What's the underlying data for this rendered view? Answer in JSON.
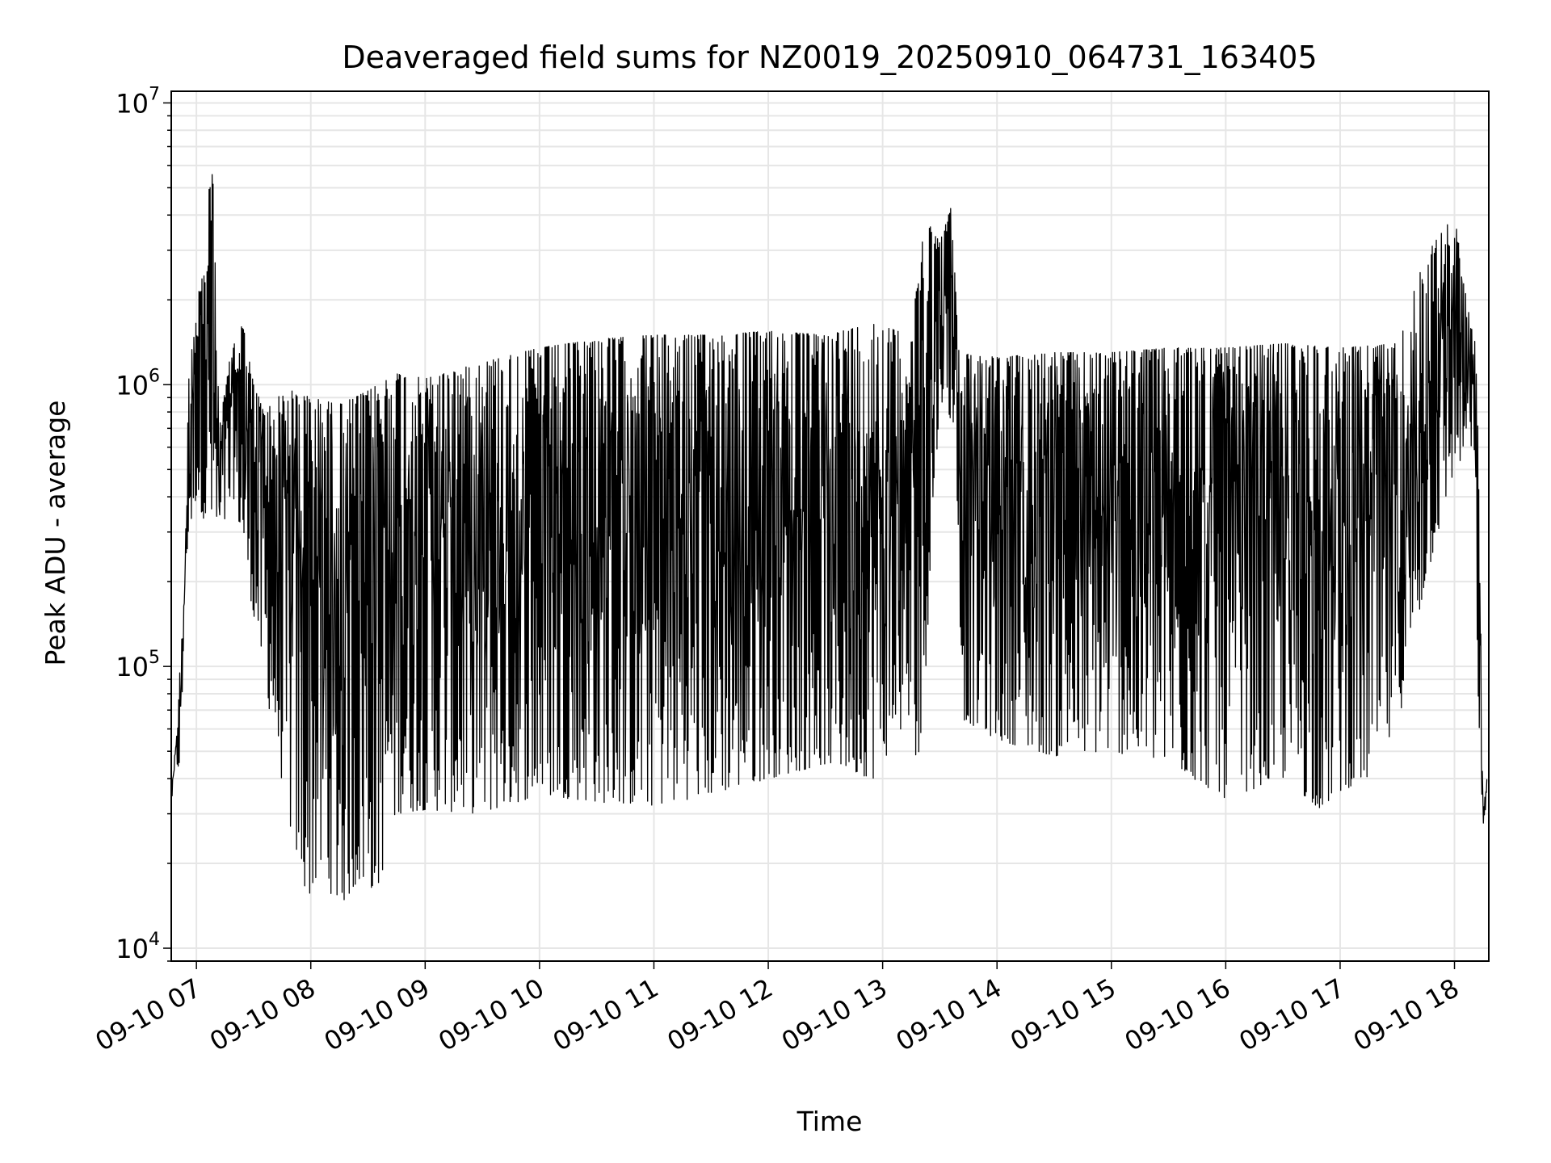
{
  "chart_data": {
    "type": "line",
    "title": "Deaveraged field sums for NZ0019_20250910_064731_163405",
    "xlabel": "Time",
    "ylabel": "Peak ADU - average",
    "yscale": "log",
    "ylim": [
      9000,
      11000000
    ],
    "xlim_hours": [
      6.78,
      18.3
    ],
    "grid": true,
    "legend": "none",
    "line_color": "#000000",
    "x_ticks": [
      {
        "label": "09-10 07",
        "hour": 7
      },
      {
        "label": "09-10 08",
        "hour": 8
      },
      {
        "label": "09-10 09",
        "hour": 9
      },
      {
        "label": "09-10 10",
        "hour": 10
      },
      {
        "label": "09-10 11",
        "hour": 11
      },
      {
        "label": "09-10 12",
        "hour": 12
      },
      {
        "label": "09-10 13",
        "hour": 13
      },
      {
        "label": "09-10 14",
        "hour": 14
      },
      {
        "label": "09-10 15",
        "hour": 15
      },
      {
        "label": "09-10 16",
        "hour": 16
      },
      {
        "label": "09-10 17",
        "hour": 17
      },
      {
        "label": "09-10 18",
        "hour": 18
      }
    ],
    "y_ticks": [
      {
        "base": "10",
        "exp": "4",
        "value": 10000
      },
      {
        "base": "10",
        "exp": "5",
        "value": 100000
      },
      {
        "base": "10",
        "exp": "6",
        "value": 1000000
      },
      {
        "base": "10",
        "exp": "7",
        "value": 10000000
      }
    ],
    "series": [
      {
        "upper_envelope": [
          [
            "09-10 06:47",
            40000
          ],
          [
            "09-10 06:52",
            45000
          ],
          [
            "09-10 06:56",
            1100000
          ],
          [
            "09-10 07:00",
            2200000
          ],
          [
            "09-10 07:05",
            2600000
          ],
          [
            "09-10 07:08",
            8400000
          ],
          [
            "09-10 07:12",
            700000
          ],
          [
            "09-10 07:18",
            1300000
          ],
          [
            "09-10 07:24",
            1700000
          ],
          [
            "09-10 07:30",
            1000000
          ],
          [
            "09-10 07:36",
            800000
          ],
          [
            "09-10 07:42",
            900000
          ],
          [
            "09-10 07:50",
            950000
          ],
          [
            "09-10 08:00",
            900000
          ],
          [
            "09-10 08:15",
            850000
          ],
          [
            "09-10 08:30",
            950000
          ],
          [
            "09-10 08:45",
            1100000
          ],
          [
            "09-10 09:00",
            1050000
          ],
          [
            "09-10 09:30",
            1200000
          ],
          [
            "09-10 10:00",
            1350000
          ],
          [
            "09-10 10:30",
            1450000
          ],
          [
            "09-10 11:00",
            1500000
          ],
          [
            "09-10 11:30",
            1500000
          ],
          [
            "09-10 12:00",
            1550000
          ],
          [
            "09-10 12:30",
            1500000
          ],
          [
            "09-10 12:55",
            1650000
          ],
          [
            "09-10 13:15",
            1500000
          ],
          [
            "09-10 13:22",
            4000000
          ],
          [
            "09-10 13:30",
            3200000
          ],
          [
            "09-10 13:36",
            4300000
          ],
          [
            "09-10 13:40",
            1300000
          ],
          [
            "09-10 14:00",
            1250000
          ],
          [
            "09-10 14:30",
            1300000
          ],
          [
            "09-10 15:00",
            1300000
          ],
          [
            "09-10 15:30",
            1350000
          ],
          [
            "09-10 16:00",
            1350000
          ],
          [
            "09-10 16:30",
            1400000
          ],
          [
            "09-10 17:00",
            1350000
          ],
          [
            "09-10 17:30",
            1400000
          ],
          [
            "09-10 17:45",
            2900000
          ],
          [
            "09-10 18:00",
            4000000
          ],
          [
            "09-10 18:08",
            1700000
          ],
          [
            "09-10 18:12",
            1300000
          ],
          [
            "09-10 18:15",
            30000
          ],
          [
            "09-10 18:17",
            40000
          ]
        ],
        "lower_envelope": [
          [
            "09-10 06:47",
            32000
          ],
          [
            "09-10 06:55",
            250000
          ],
          [
            "09-10 07:00",
            400000
          ],
          [
            "09-10 07:10",
            250000
          ],
          [
            "09-10 07:20",
            400000
          ],
          [
            "09-10 07:30",
            150000
          ],
          [
            "09-10 07:40",
            60000
          ],
          [
            "09-10 07:50",
            25000
          ],
          [
            "09-10 07:58",
            15000
          ],
          [
            "09-10 08:05",
            18000
          ],
          [
            "09-10 08:15",
            14000
          ],
          [
            "09-10 08:25",
            17000
          ],
          [
            "09-10 08:35",
            16000
          ],
          [
            "09-10 08:45",
            30000
          ],
          [
            "09-10 09:00",
            31000
          ],
          [
            "09-10 09:30",
            30000
          ],
          [
            "09-10 10:00",
            35000
          ],
          [
            "09-10 10:30",
            33000
          ],
          [
            "09-10 11:00",
            32000
          ],
          [
            "09-10 11:30",
            35000
          ],
          [
            "09-10 12:00",
            40000
          ],
          [
            "09-10 12:30",
            45000
          ],
          [
            "09-10 12:55",
            40000
          ],
          [
            "09-10 13:10",
            60000
          ],
          [
            "09-10 13:20",
            45000
          ],
          [
            "09-10 13:30",
            900000
          ],
          [
            "09-10 13:38",
            700000
          ],
          [
            "09-10 13:42",
            65000
          ],
          [
            "09-10 14:00",
            55000
          ],
          [
            "09-10 14:30",
            48000
          ],
          [
            "09-10 15:00",
            50000
          ],
          [
            "09-10 15:30",
            45000
          ],
          [
            "09-10 16:00",
            34000
          ],
          [
            "09-10 16:30",
            40000
          ],
          [
            "09-10 16:50",
            31000
          ],
          [
            "09-10 17:00",
            36000
          ],
          [
            "09-10 17:15",
            40000
          ],
          [
            "09-10 17:30",
            60000
          ],
          [
            "09-10 17:45",
            200000
          ],
          [
            "09-10 18:00",
            500000
          ],
          [
            "09-10 18:10",
            600000
          ],
          [
            "09-10 18:14",
            22000
          ],
          [
            "09-10 18:17",
            35000
          ]
        ]
      }
    ]
  }
}
